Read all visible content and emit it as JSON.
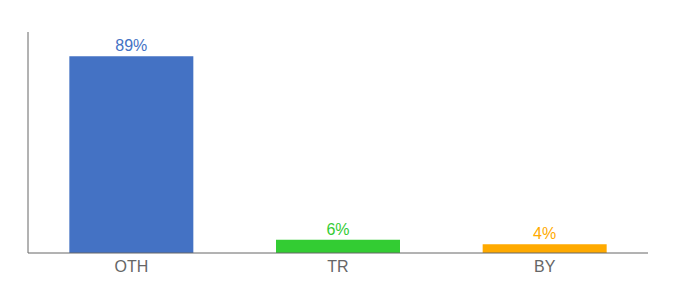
{
  "chart_data": {
    "type": "bar",
    "categories": [
      "OTH",
      "TR",
      "BY"
    ],
    "values": [
      89,
      6,
      4
    ],
    "value_labels": [
      "89%",
      "6%",
      "4%"
    ],
    "colors": [
      "#4472c4",
      "#33cc33",
      "#ffaa00"
    ],
    "ylim": [
      0,
      100
    ],
    "data_labels": true,
    "tick_labels": "x",
    "grid": false
  }
}
